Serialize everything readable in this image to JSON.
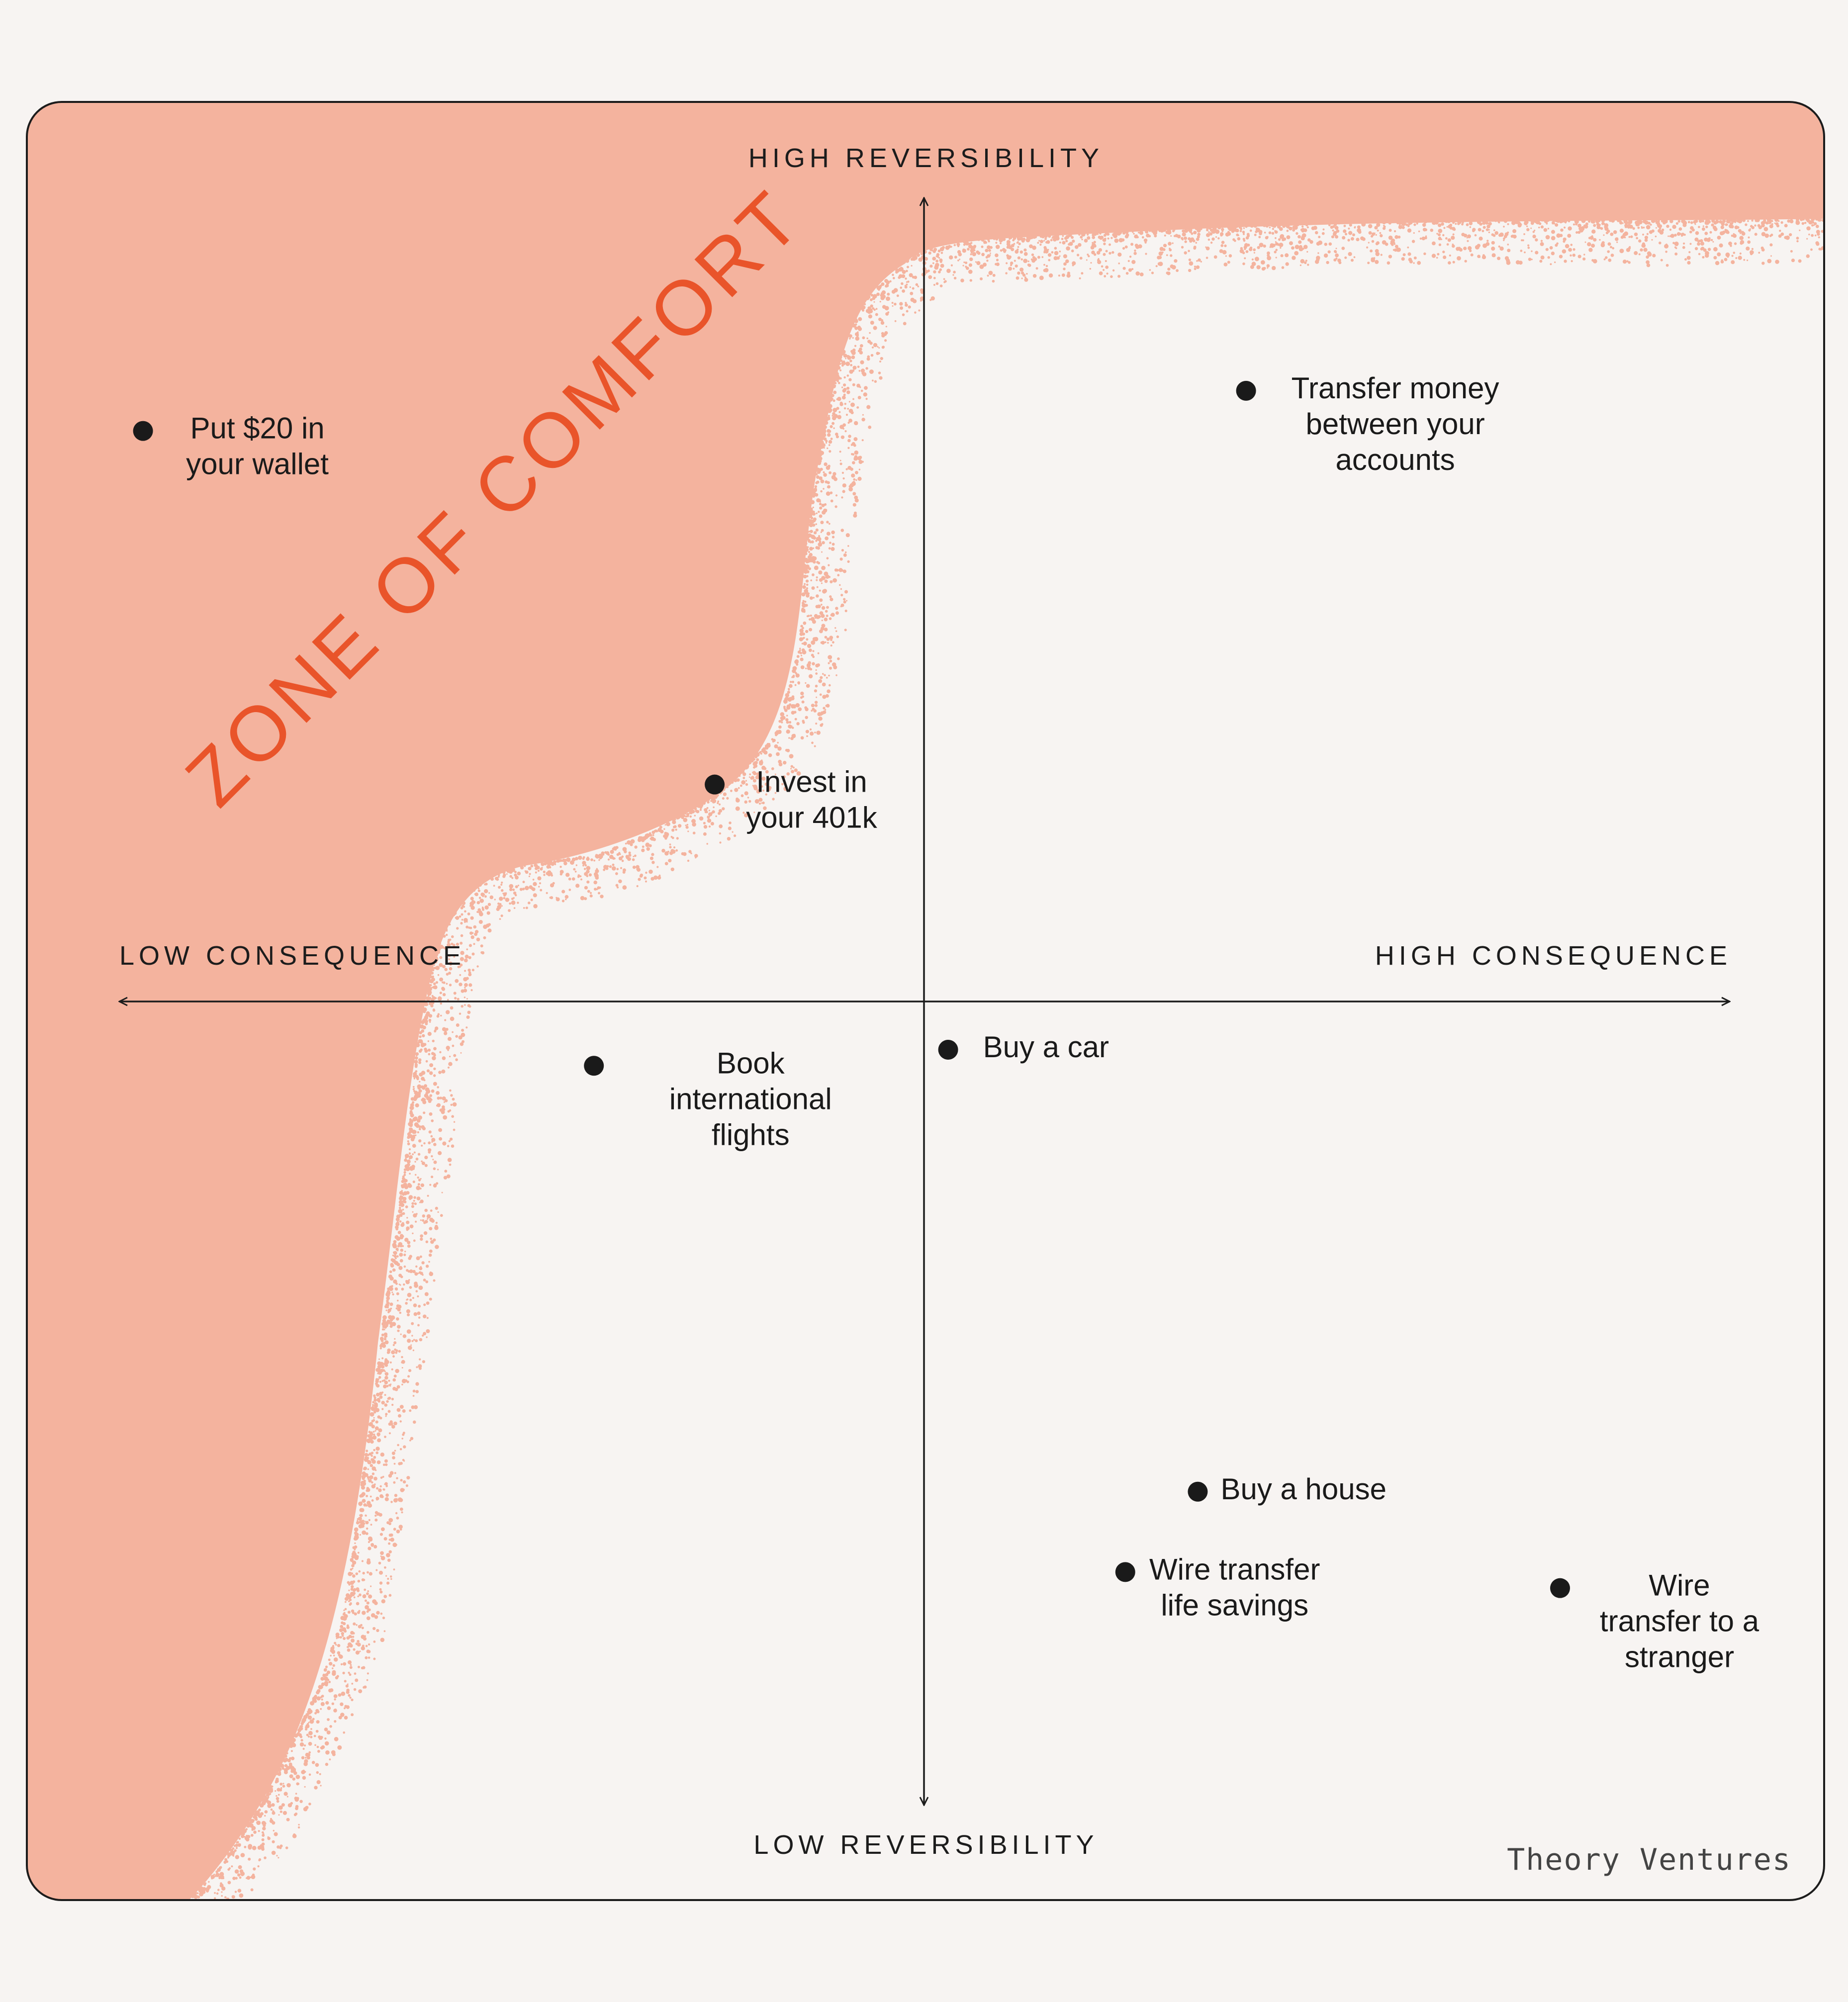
{
  "chart_data": {
    "type": "scatter",
    "title": "",
    "x_axis": {
      "low_label": "LOW CONSEQUENCE",
      "high_label": "HIGH CONSEQUENCE"
    },
    "y_axis": {
      "high_label": "HIGH REVERSIBILITY",
      "low_label": "LOW REVERSIBILITY"
    },
    "xlim": [
      -10,
      10
    ],
    "ylim": [
      -10,
      10
    ],
    "grid": false,
    "region": {
      "label": "ZONE OF COMFORT",
      "color": "#f4b39e"
    },
    "points": [
      {
        "label": [
          "Put $20 in",
          "your wallet"
        ],
        "x": -9.7,
        "y": 7.1
      },
      {
        "label": [
          "Transfer money",
          "between your",
          "accounts"
        ],
        "x": 4.0,
        "y": 7.6
      },
      {
        "label": [
          "Invest in",
          "your 401k"
        ],
        "x": -2.6,
        "y": 2.7
      },
      {
        "label": [
          "Book",
          "international",
          "flights"
        ],
        "x": -4.1,
        "y": -0.8
      },
      {
        "label": [
          "Buy a car"
        ],
        "x": 0.3,
        "y": -0.6
      },
      {
        "label": [
          "Buy a house"
        ],
        "x": 3.4,
        "y": -6.1
      },
      {
        "label": [
          "Wire transfer",
          "life savings"
        ],
        "x": 2.5,
        "y": -7.1
      },
      {
        "label": [
          "Wire",
          "transfer to a",
          "stranger"
        ],
        "x": 7.9,
        "y": -7.3
      }
    ]
  },
  "brand": "Theory Ventures",
  "colors": {
    "accent": "#e9542a",
    "zone": "#f4b39e",
    "ink": "#1a1a1a",
    "background": "#f7f4f2"
  }
}
